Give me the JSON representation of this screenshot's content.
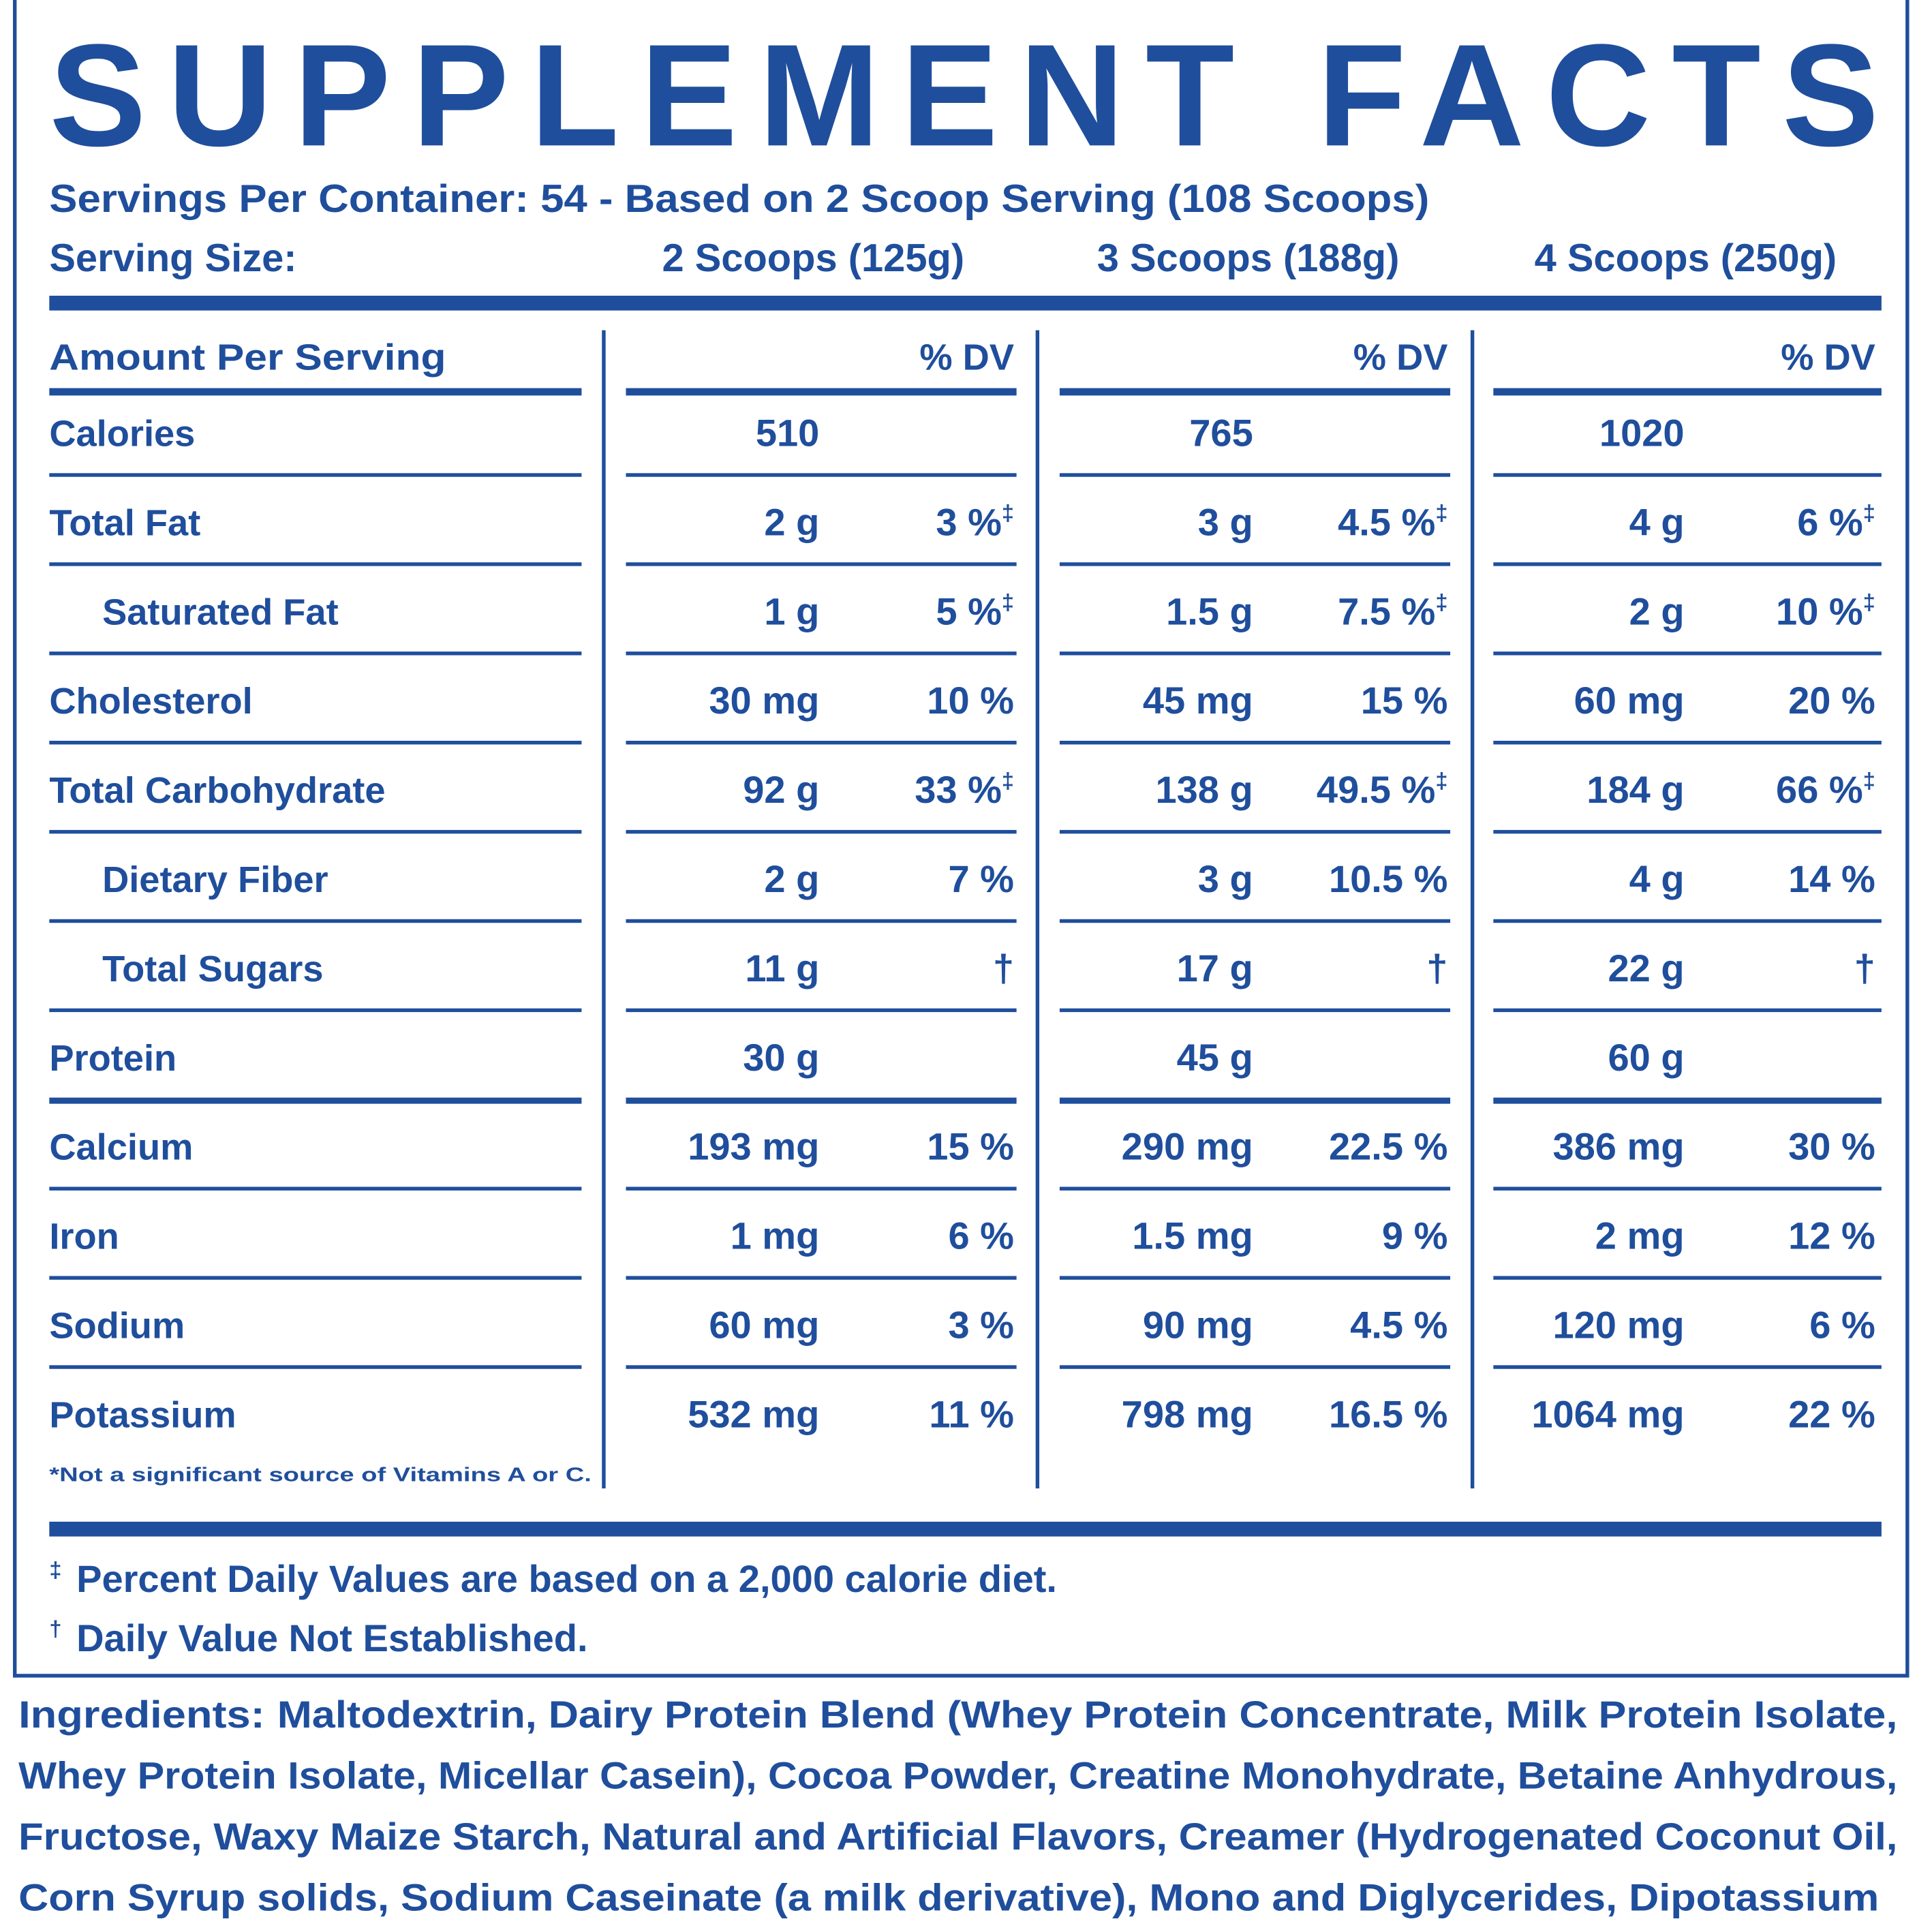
{
  "title": "SUPPLEMENT FACTS",
  "servings": "Servings Per Container: 54 - Based on 2 Scoop Serving (108 Scoops)",
  "serving_size": {
    "label": "Serving Size:",
    "columns": [
      "2 Scoops (125g)",
      "3 Scoops (188g)",
      "4 Scoops (250g)"
    ]
  },
  "header": {
    "amount": "Amount Per Serving",
    "dv": [
      "% DV",
      "% DV",
      "% DV"
    ]
  },
  "rows": [
    {
      "name": "Calories",
      "indent": false,
      "cells": [
        {
          "amount": "510"
        },
        {
          "amount": "765"
        },
        {
          "amount": "1020"
        }
      ]
    },
    {
      "name": "Total Fat",
      "indent": false,
      "cells": [
        {
          "amount": "2 g",
          "dv": "3 %",
          "mark": "‡"
        },
        {
          "amount": "3 g",
          "dv": "4.5 %",
          "mark": "‡"
        },
        {
          "amount": "4 g",
          "dv": "6 %",
          "mark": "‡"
        }
      ]
    },
    {
      "name": "Saturated Fat",
      "indent": true,
      "cells": [
        {
          "amount": "1 g",
          "dv": "5 %",
          "mark": "‡"
        },
        {
          "amount": "1.5 g",
          "dv": "7.5 %",
          "mark": "‡"
        },
        {
          "amount": "2 g",
          "dv": "10 %",
          "mark": "‡"
        }
      ]
    },
    {
      "name": "Cholesterol",
      "indent": false,
      "cells": [
        {
          "amount": "30 mg",
          "dv": "10 %"
        },
        {
          "amount": "45 mg",
          "dv": "15 %"
        },
        {
          "amount": "60 mg",
          "dv": "20 %"
        }
      ]
    },
    {
      "name": "Total Carbohydrate",
      "indent": false,
      "cells": [
        {
          "amount": "92 g",
          "dv": "33 %",
          "mark": "‡"
        },
        {
          "amount": "138 g",
          "dv": "49.5 %",
          "mark": "‡"
        },
        {
          "amount": "184 g",
          "dv": "66 %",
          "mark": "‡"
        }
      ]
    },
    {
      "name": "Dietary Fiber",
      "indent": true,
      "cells": [
        {
          "amount": "2 g",
          "dv": "7 %"
        },
        {
          "amount": "3 g",
          "dv": "10.5 %"
        },
        {
          "amount": "4 g",
          "dv": "14 %"
        }
      ]
    },
    {
      "name": "Total Sugars",
      "indent": true,
      "cells": [
        {
          "amount": "11 g",
          "dv": "†"
        },
        {
          "amount": "17 g",
          "dv": "†"
        },
        {
          "amount": "22 g",
          "dv": "†"
        }
      ]
    },
    {
      "name": "Protein",
      "indent": false,
      "cells": [
        {
          "amount": "30 g"
        },
        {
          "amount": "45 g"
        },
        {
          "amount": "60 g"
        }
      ]
    },
    {
      "name": "Calcium",
      "indent": false,
      "cells": [
        {
          "amount": "193 mg",
          "dv": "15 %"
        },
        {
          "amount": "290 mg",
          "dv": "22.5 %"
        },
        {
          "amount": "386 mg",
          "dv": "30 %"
        }
      ]
    },
    {
      "name": "Iron",
      "indent": false,
      "cells": [
        {
          "amount": "1 mg",
          "dv": "6 %"
        },
        {
          "amount": "1.5 mg",
          "dv": "9 %"
        },
        {
          "amount": "2 mg",
          "dv": "12 %"
        }
      ]
    },
    {
      "name": "Sodium",
      "indent": false,
      "cells": [
        {
          "amount": "60 mg",
          "dv": "3 %"
        },
        {
          "amount": "90 mg",
          "dv": "4.5 %"
        },
        {
          "amount": "120 mg",
          "dv": "6 %"
        }
      ]
    },
    {
      "name": "Potassium",
      "indent": false,
      "cells": [
        {
          "amount": "532 mg",
          "dv": "11 %"
        },
        {
          "amount": "798 mg",
          "dv": "16.5 %"
        },
        {
          "amount": "1064 mg",
          "dv": "22 %"
        }
      ]
    }
  ],
  "table_note": "*Not a significant source of Vitamins A or C.",
  "footnotes": [
    {
      "symbol": "‡",
      "text": "Percent Daily Values are based on a 2,000 calorie diet."
    },
    {
      "symbol": "†",
      "text": "Daily Value Not Established."
    }
  ],
  "ingredients": {
    "label": "Ingredients:",
    "lines": [
      "Maltodextrin, Dairy Protein Blend (Whey Protein Concentrate, Milk Protein Isolate,",
      "Whey Protein Isolate, Micellar Casein), Cocoa Powder, Creatine  Monohydrate, Betaine Anhydrous,",
      "Fructose, Waxy Maize Starch, Natural and Artificial Flavors, Creamer (Hydrogenated Coconut Oil,",
      "Corn Syrup solids, Sodium Caseinate (a milk derivative), Mono and Diglycerides, Dipotassium"
    ]
  }
}
